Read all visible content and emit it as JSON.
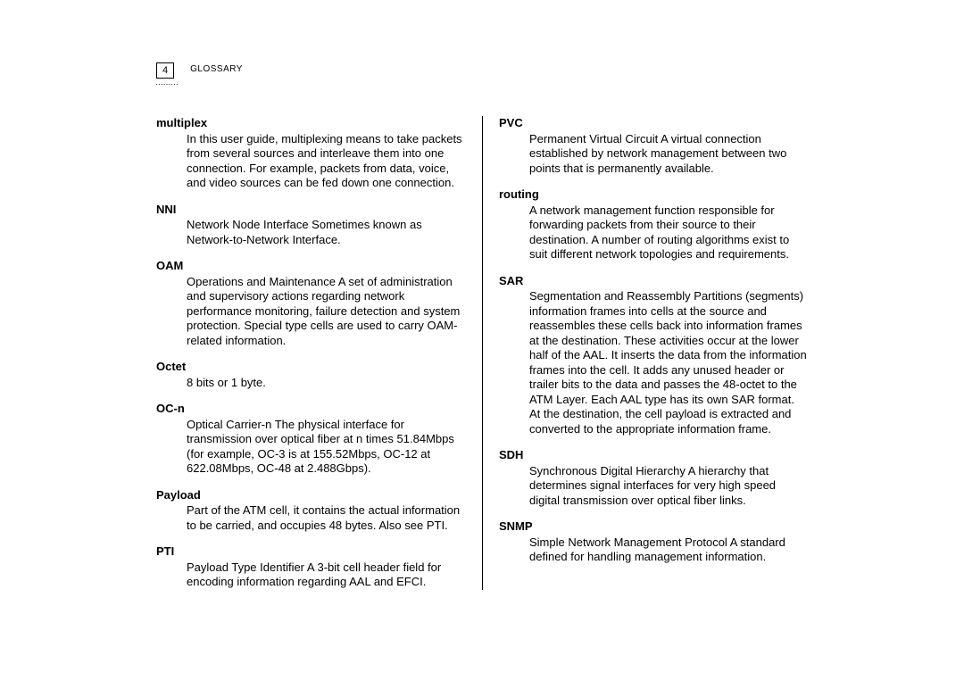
{
  "header": {
    "page_number": "4",
    "section": "GLOSSARY",
    "dots": "………"
  },
  "left_column": [
    {
      "term": "multiplex",
      "def": "In this user guide, multiplexing means to take packets from several sources and interleave them into one connection. For example, packets from data, voice, and video sources can be fed down one connection."
    },
    {
      "term": "NNI",
      "def": "Network Node Interface   Sometimes known as Network-to-Network Interface."
    },
    {
      "term": "OAM",
      "def": "Operations and Maintenance   A set of administration and supervisory actions regarding network performance monitoring, failure detection and system protection. Special type cells are used to carry OAM-related information."
    },
    {
      "term": "Octet",
      "def": "8 bits or 1 byte."
    },
    {
      "term": "OC-n",
      "def": "Optical Carrier-n   The physical interface for transmission over optical fiber at n times 51.84Mbps (for example, OC-3 is at 155.52Mbps, OC-12 at 622.08Mbps, OC-48 at 2.488Gbps)."
    },
    {
      "term": "Payload",
      "def": "Part of the ATM cell, it contains the actual information to be carried, and occupies 48 bytes. Also see PTI."
    },
    {
      "term": "PTI",
      "def": "Payload Type Identifier   A 3-bit cell header field for encoding information regarding AAL and EFCI."
    }
  ],
  "right_column": [
    {
      "term": "PVC",
      "def": "Permanent Virtual Circuit   A virtual connection established by network management between two points that is permanently available."
    },
    {
      "term": "routing",
      "def": "A network management function responsible for forwarding packets from their source to their destination. A number of routing algorithms exist to suit different network topologies and requirements."
    },
    {
      "term": "SAR",
      "def": "Segmentation and Reassembly   Partitions (segments) information frames into cells at the source and reassembles these cells back into information frames at the destination. These activities occur at the lower half of the AAL. It inserts the data from the information frames into the cell. It adds any unused header or trailer bits to the data and passes the 48-octet to the ATM Layer. Each AAL type has its own SAR format. At the destination, the cell payload is extracted and converted to the appropriate information frame."
    },
    {
      "term": "SDH",
      "def": "Synchronous Digital Hierarchy   A hierarchy that determines signal interfaces for very high speed digital transmission over optical fiber links."
    },
    {
      "term": "SNMP",
      "def": "Simple Network Management Protocol   A standard defined for handling management information."
    }
  ]
}
